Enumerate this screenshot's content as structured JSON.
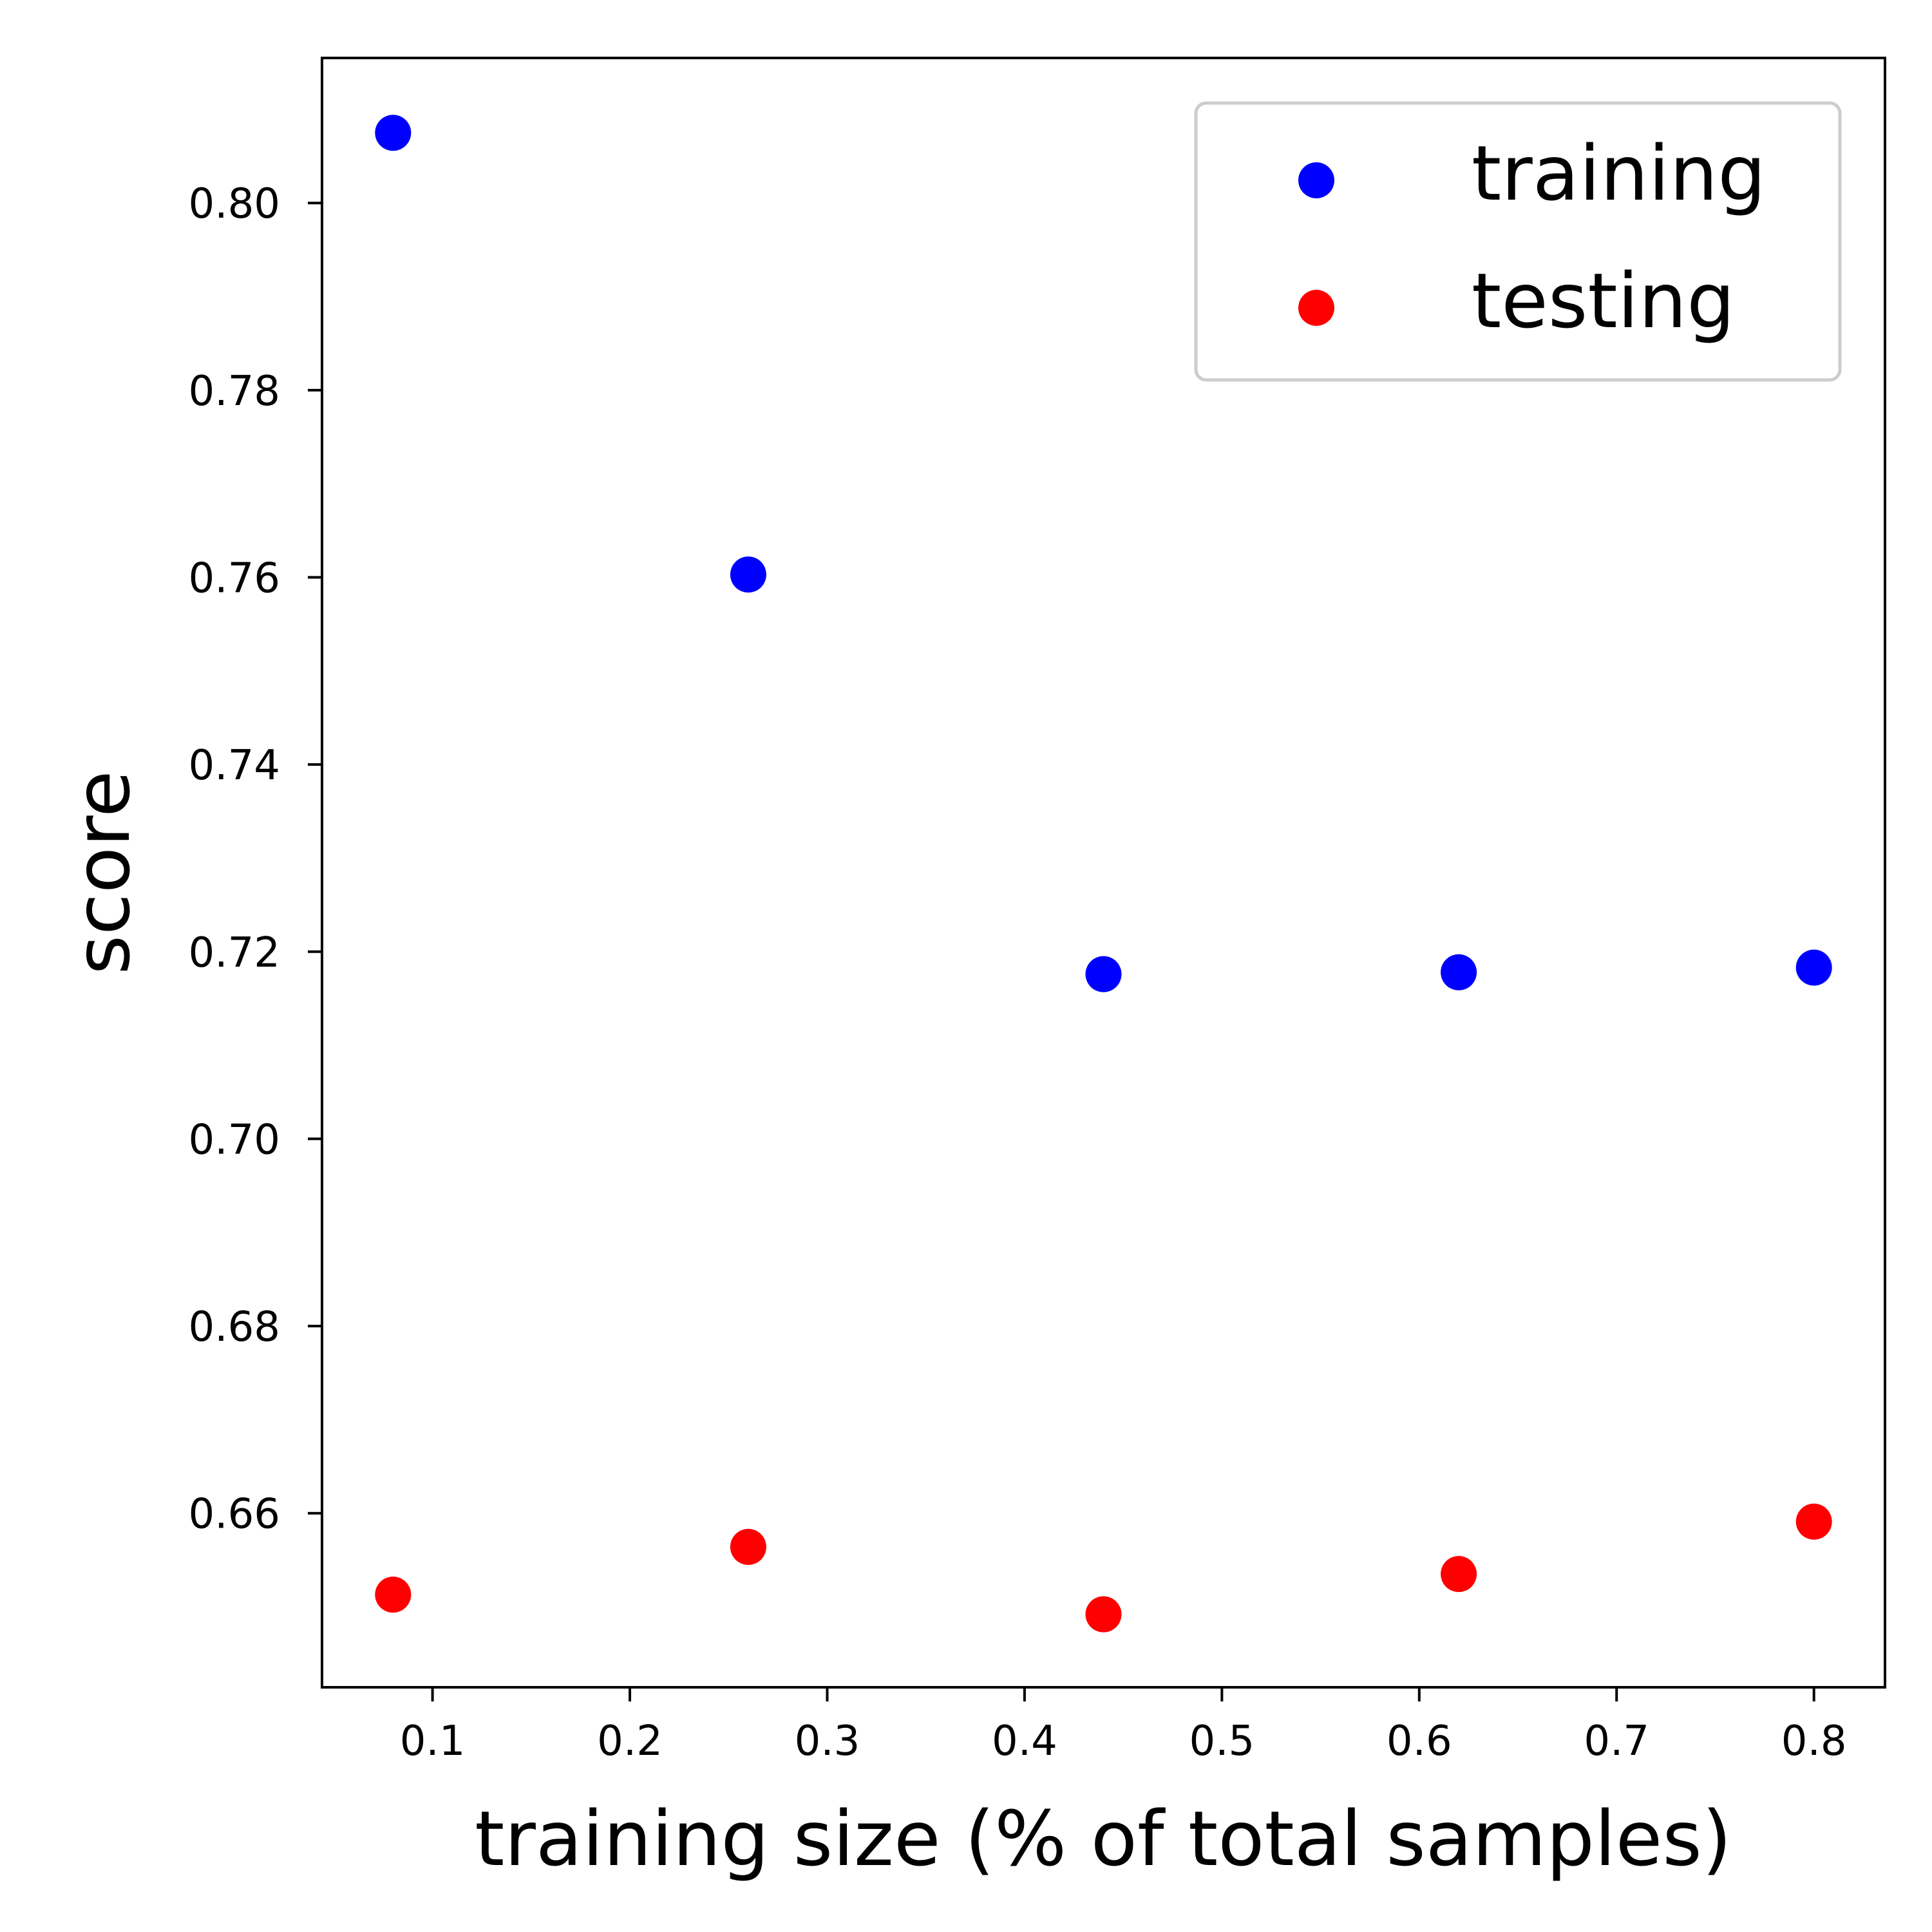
{
  "chart_data": {
    "type": "scatter",
    "title": "",
    "xlabel": "training size (% of total samples)",
    "ylabel": "score",
    "xlim": [
      0.044,
      0.836
    ],
    "ylim": [
      0.6414,
      0.8155
    ],
    "xticks": [
      {
        "value": 0.1,
        "label": "0.1"
      },
      {
        "value": 0.2,
        "label": "0.2"
      },
      {
        "value": 0.3,
        "label": "0.3"
      },
      {
        "value": 0.4,
        "label": "0.4"
      },
      {
        "value": 0.5,
        "label": "0.5"
      },
      {
        "value": 0.6,
        "label": "0.6"
      },
      {
        "value": 0.7,
        "label": "0.7"
      },
      {
        "value": 0.8,
        "label": "0.8"
      }
    ],
    "yticks": [
      {
        "value": 0.66,
        "label": "0.66"
      },
      {
        "value": 0.68,
        "label": "0.68"
      },
      {
        "value": 0.7,
        "label": "0.70"
      },
      {
        "value": 0.72,
        "label": "0.72"
      },
      {
        "value": 0.74,
        "label": "0.74"
      },
      {
        "value": 0.76,
        "label": "0.76"
      },
      {
        "value": 0.78,
        "label": "0.78"
      },
      {
        "value": 0.8,
        "label": "0.80"
      }
    ],
    "grid": false,
    "legend_position": "top-right",
    "series": [
      {
        "name": "training",
        "color": "#0000ff",
        "x": [
          0.08,
          0.26,
          0.44,
          0.62,
          0.8
        ],
        "y": [
          0.8075,
          0.7603,
          0.7176,
          0.7178,
          0.7183
        ]
      },
      {
        "name": "testing",
        "color": "#ff0000",
        "x": [
          0.08,
          0.26,
          0.44,
          0.62,
          0.8
        ],
        "y": [
          0.6513,
          0.6564,
          0.6492,
          0.6535,
          0.6591
        ]
      }
    ]
  }
}
